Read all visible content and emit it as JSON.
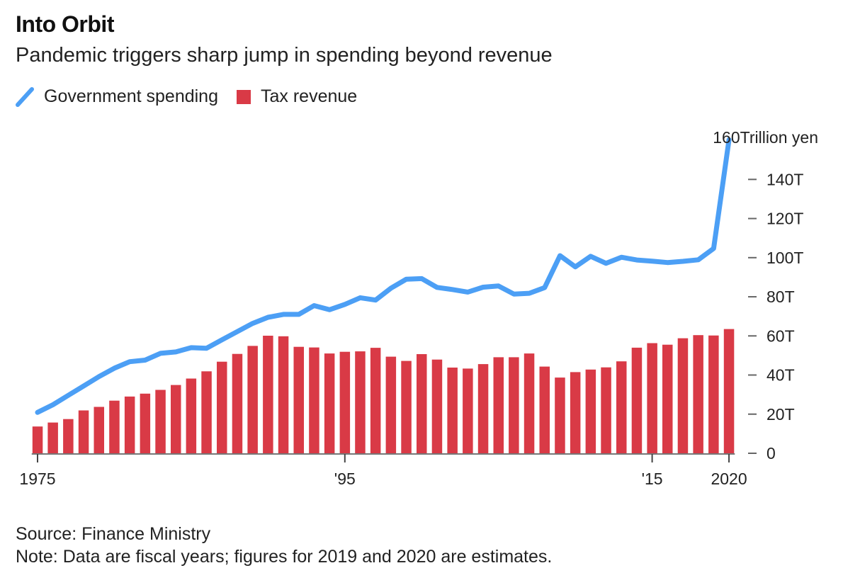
{
  "chart_data": {
    "type": "bar+line",
    "title": "Into Orbit",
    "subtitle": "Pandemic triggers sharp jump in spending beyond revenue",
    "xlabel": "",
    "ylabel": "Trillion yen",
    "unit_label": "Trillion yen",
    "ylim": [
      0,
      160
    ],
    "grid": false,
    "legend_position": "top-left",
    "y_ticks": [
      {
        "value": 0,
        "label": "0"
      },
      {
        "value": 20,
        "label": "20T"
      },
      {
        "value": 40,
        "label": "40T"
      },
      {
        "value": 60,
        "label": "60T"
      },
      {
        "value": 80,
        "label": "80T"
      },
      {
        "value": 100,
        "label": "100T"
      },
      {
        "value": 120,
        "label": "120T"
      },
      {
        "value": 140,
        "label": "140T"
      },
      {
        "value": 160,
        "label": "160"
      }
    ],
    "x_ticks": [
      {
        "year": 1975,
        "label": "1975"
      },
      {
        "year": 1995,
        "label": "'95"
      },
      {
        "year": 2015,
        "label": "'15"
      },
      {
        "year": 2020,
        "label": "2020"
      }
    ],
    "x": [
      1975,
      1976,
      1977,
      1978,
      1979,
      1980,
      1981,
      1982,
      1983,
      1984,
      1985,
      1986,
      1987,
      1988,
      1989,
      1990,
      1991,
      1992,
      1993,
      1994,
      1995,
      1996,
      1997,
      1998,
      1999,
      2000,
      2001,
      2002,
      2003,
      2004,
      2005,
      2006,
      2007,
      2008,
      2009,
      2010,
      2011,
      2012,
      2013,
      2014,
      2015,
      2016,
      2017,
      2018,
      2019,
      2020
    ],
    "series": [
      {
        "name": "Government spending",
        "type": "line",
        "color": "#4c9ff5",
        "values": [
          20.9,
          24.8,
          29.6,
          34.4,
          39.2,
          43.5,
          46.8,
          47.6,
          51.1,
          51.8,
          54.0,
          53.7,
          58.0,
          62.2,
          66.4,
          69.5,
          71.0,
          71.0,
          75.5,
          73.4,
          76.1,
          79.5,
          78.3,
          84.4,
          89.0,
          89.3,
          84.8,
          83.7,
          82.4,
          84.9,
          85.5,
          81.4,
          81.8,
          84.7,
          101.0,
          95.3,
          100.7,
          97.1,
          100.2,
          98.8,
          98.2,
          97.5,
          98.1,
          98.9,
          104.7,
          160.3
        ]
      },
      {
        "name": "Tax revenue",
        "type": "bar",
        "color": "#d93a46",
        "values": [
          13.7,
          15.7,
          17.5,
          21.9,
          23.7,
          26.9,
          29.0,
          30.5,
          32.4,
          34.9,
          38.2,
          41.9,
          46.8,
          50.8,
          54.9,
          60.1,
          59.8,
          54.4,
          54.1,
          51.0,
          51.9,
          52.1,
          53.9,
          49.4,
          47.2,
          50.7,
          47.9,
          43.8,
          43.3,
          45.6,
          49.1,
          49.1,
          51.0,
          44.3,
          38.7,
          41.5,
          42.8,
          43.9,
          47.0,
          54.0,
          56.3,
          55.5,
          58.8,
          60.4,
          60.2,
          63.5
        ]
      }
    ],
    "source": "Source: Finance Ministry",
    "note": "Note: Data are fiscal years; figures for 2019 and 2020 are estimates."
  },
  "header": {
    "title": "Into Orbit",
    "subtitle": "Pandemic triggers sharp jump in spending beyond revenue"
  },
  "legend": {
    "items": [
      {
        "label": "Government spending",
        "icon": "line-icon",
        "color": "#4c9ff5"
      },
      {
        "label": "Tax revenue",
        "icon": "square-swatch-icon",
        "color": "#d93a46"
      }
    ]
  },
  "footer": {
    "source": "Source: Finance Ministry",
    "note": "Note: Data are fiscal years; figures for 2019 and 2020 are estimates."
  }
}
